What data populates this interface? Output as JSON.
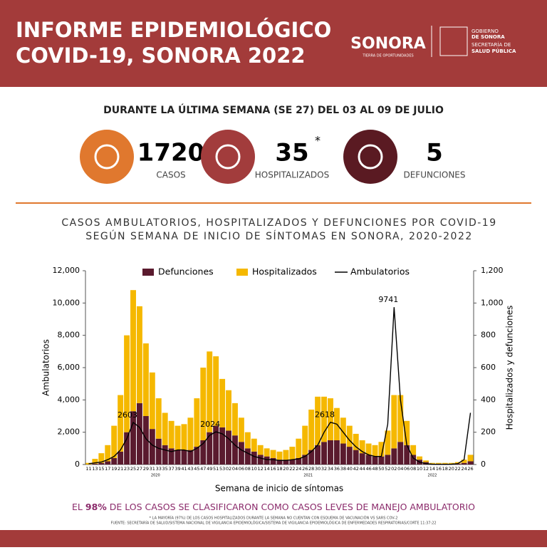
{
  "header": {
    "title_lines": [
      "INFORME EPIDEMIOLÓGICO",
      "COVID-19, SONORA 2022"
    ],
    "logo_text": "SONORA",
    "logo_tagline": "TIERRA DE OPORTUNIDADES",
    "gov_lines": [
      "GOBIERNO",
      "DE SONORA"
    ],
    "dept_lines": [
      "SECRETARÍA DE",
      "SALUD PÚBLICA"
    ]
  },
  "summary": "DURANTE LA ÚLTIMA SEMANA (SE 27) DEL 03 AL 09 DE JULIO",
  "stats": [
    {
      "value": "1720",
      "label": "CASOS",
      "color": "#e0782e"
    },
    {
      "value": "35",
      "mark": "*",
      "label": "HOSPITALIZADOS",
      "color": "#a23c3c"
    },
    {
      "value": "5",
      "label": "DEFUNCIONES",
      "color": "#5a1a22"
    }
  ],
  "chart_data": {
    "type": "bar-line",
    "title_lines": [
      "CASOS AMBULATORIOS, HOSPITALIZADOS Y DEFUNCIONES POR COVID-19",
      "SEGÚN SEMANA DE INICIO DE SÍNTOMAS EN SONORA, 2020-2022"
    ],
    "x_label": "Semana de inicio de síntomas",
    "y_label": "Ambulatorios",
    "y2_label": "Hospitalizados y defunciones",
    "categories": [
      "11",
      "13",
      "15",
      "17",
      "19",
      "21",
      "23",
      "25",
      "27",
      "29",
      "31",
      "33",
      "35",
      "37",
      "39",
      "41",
      "43",
      "45",
      "47",
      "49",
      "51",
      "53",
      "02",
      "04",
      "06",
      "08",
      "10",
      "12",
      "14",
      "16",
      "18",
      "20",
      "22",
      "24",
      "26",
      "28",
      "30",
      "32",
      "34",
      "36",
      "38",
      "40",
      "42",
      "44",
      "46",
      "48",
      "50",
      "52",
      "02",
      "04",
      "06",
      "08",
      "10",
      "12",
      "14",
      "16",
      "18",
      "20",
      "22",
      "24",
      "26"
    ],
    "year_labels": [
      "2020",
      "2021",
      "2022"
    ],
    "series": [
      {
        "name": "Defunciones",
        "color": "#5a1a2e",
        "axis": "y2",
        "values": [
          0,
          5,
          10,
          20,
          40,
          80,
          200,
          330,
          380,
          300,
          220,
          160,
          120,
          100,
          90,
          90,
          90,
          110,
          150,
          200,
          240,
          230,
          210,
          180,
          140,
          100,
          80,
          60,
          50,
          40,
          30,
          30,
          30,
          40,
          60,
          90,
          120,
          140,
          150,
          150,
          130,
          110,
          90,
          70,
          60,
          50,
          50,
          60,
          100,
          140,
          120,
          60,
          30,
          15,
          5,
          5,
          5,
          5,
          5,
          10,
          20
        ]
      },
      {
        "name": "Hospitalizados",
        "color": "#f5b800",
        "axis": "y2",
        "values": [
          10,
          30,
          60,
          100,
          200,
          350,
          600,
          750,
          600,
          450,
          350,
          250,
          200,
          170,
          150,
          160,
          200,
          300,
          450,
          500,
          430,
          300,
          250,
          200,
          150,
          100,
          80,
          60,
          50,
          50,
          50,
          60,
          80,
          120,
          180,
          250,
          300,
          280,
          260,
          200,
          160,
          130,
          100,
          80,
          70,
          70,
          90,
          150,
          330,
          290,
          150,
          60,
          20,
          10,
          5,
          5,
          5,
          5,
          10,
          20,
          40
        ]
      },
      {
        "name": "Ambulatorios",
        "color": "#000000",
        "values": [
          50,
          100,
          150,
          300,
          500,
          900,
          1600,
          2603,
          2300,
          1600,
          1200,
          1000,
          900,
          800,
          900,
          900,
          800,
          1000,
          1300,
          1800,
          2024,
          1900,
          1600,
          1200,
          900,
          700,
          500,
          400,
          300,
          300,
          250,
          250,
          300,
          350,
          500,
          800,
          1200,
          2000,
          2618,
          2500,
          2000,
          1500,
          1100,
          800,
          600,
          500,
          500,
          2500,
          9741,
          4000,
          1200,
          400,
          150,
          50,
          20,
          10,
          10,
          20,
          50,
          300,
          3200
        ],
        "value_labels": [
          null,
          null,
          null,
          null,
          null,
          null,
          null,
          "2603",
          null,
          null,
          null,
          null,
          null,
          null,
          null,
          null,
          null,
          null,
          null,
          null,
          "2024",
          null,
          null,
          null,
          null,
          null,
          null,
          null,
          null,
          null,
          null,
          null,
          null,
          null,
          null,
          null,
          null,
          null,
          "2618",
          null,
          null,
          null,
          null,
          null,
          null,
          null,
          null,
          null,
          "9741",
          null,
          null,
          null,
          null,
          null,
          null,
          null,
          null,
          null,
          null,
          null,
          null
        ]
      }
    ],
    "ylim": [
      0,
      12000
    ],
    "yticks": [
      0,
      {
        "value": 2000,
        "label": "2,000"
      },
      {
        "value": 4000,
        "label": "4,000"
      },
      {
        "value": 6000,
        "label": "6,000"
      },
      {
        "value": 8000,
        "label": "8,000"
      },
      {
        "value": 10000,
        "label": "10,000"
      },
      {
        "value": 12000,
        "label": "12,000"
      }
    ],
    "y2lim": [
      0,
      1200
    ],
    "y2ticks": [
      0,
      200,
      400,
      600,
      800,
      {
        "value": 1000,
        "label": "1,000"
      },
      {
        "value": 1200,
        "label": "1,200"
      }
    ]
  },
  "footer": {
    "parts": [
      "EL ",
      "98%",
      " DE LOS CASOS SE CLASIFICARON COMO CASOS LEVES DE  MANEJO AMBULATORIO"
    ],
    "notes": [
      "* LA MAYORÍA (97%) DE LOS CASOS HOSPITALIZADOS DURANTE LA SEMANA NO CUENTAN CON ESQUEMA DE VACUNACIÓN VS SARS COV-2",
      "FUENTE: SECRETARÍA DE SALUD/SISTEMA NACIONAL DE VIGILANCIA EPIDEMIOLÓGICA/SISTEMA DE VIGILANCIA EPIDEMIOLÓGICA DE ENFERMEDADES RESPIRATORIAS/CORTE 11:37:22"
    ]
  }
}
